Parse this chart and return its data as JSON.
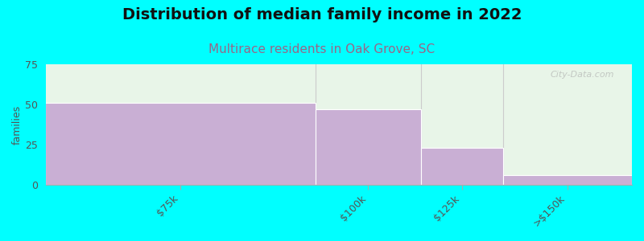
{
  "title": "Distribution of median family income in 2022",
  "subtitle": "Multirace residents in Oak Grove, SC",
  "categories": [
    "$75k",
    "$100k",
    "$125k",
    ">$150k"
  ],
  "values": [
    51,
    47,
    23,
    6
  ],
  "bar_color": "#c9afd4",
  "bg_color": "#00ffff",
  "plot_bg_color_top": "#e8f5e8",
  "plot_bg_color_bottom": "#f8fff8",
  "ylabel": "families",
  "ylim": [
    0,
    75
  ],
  "yticks": [
    0,
    25,
    50,
    75
  ],
  "title_fontsize": 14,
  "subtitle_fontsize": 11,
  "subtitle_color": "#996688",
  "bar_edges": [
    0,
    0.46,
    0.64,
    0.78,
    1.0
  ],
  "watermark": "City-Data.com"
}
